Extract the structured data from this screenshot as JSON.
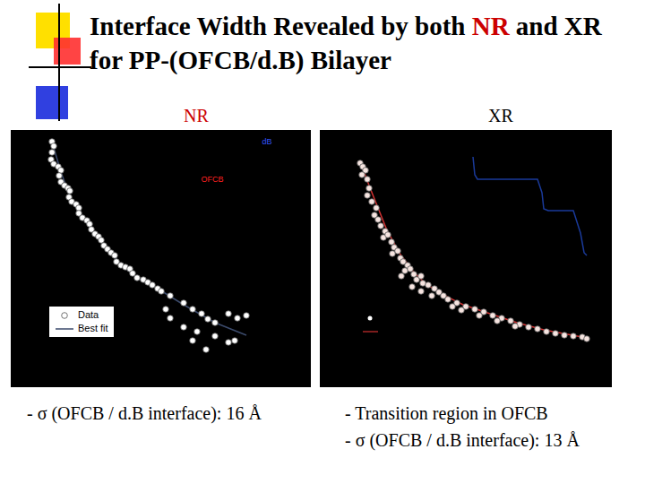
{
  "slide": {
    "title": [
      {
        "text": "Interface Width Revealed by both ",
        "color": "#000000"
      },
      {
        "text": "NR",
        "color": "#cc0000"
      },
      {
        "text": " and XR for PP-(OFCB/d.B) Bilayer",
        "color": "#000000"
      }
    ],
    "captions": [
      [
        "- σ (OFCB / d.B interface): 16 Å"
      ],
      [
        "- Transition region in OFCB",
        "- σ (OFCB / d.B interface): 13 Å"
      ]
    ]
  },
  "chart_data": [
    {
      "type": "scatter",
      "title": "NR",
      "xlim": [
        0,
        335
      ],
      "ylim": [
        0,
        287
      ],
      "tick_labels": false,
      "legend": "lower left",
      "series": [
        {
          "name": "Data",
          "type": "scatter",
          "color": "#ffffff",
          "marker": "circle",
          "x": [
            46,
            48,
            46,
            45,
            48,
            53,
            56,
            54,
            56,
            60,
            64,
            66,
            65,
            68,
            73,
            76,
            76,
            80,
            85,
            88,
            90,
            94,
            98,
            101,
            104,
            108,
            112,
            116,
            118,
            123,
            128,
            133,
            136,
            141,
            148,
            153,
            158,
            164,
            168,
            178,
            193,
            203,
            213,
            220,
            228,
            243,
            253,
            263,
            173,
            193,
            208,
            228,
            243,
            250,
            203,
            218,
            178
          ],
          "values": [
            274,
            269,
            262,
            254,
            249,
            246,
            242,
            236,
            229,
            225,
            222,
            219,
            212,
            207,
            204,
            200,
            194,
            189,
            186,
            182,
            176,
            171,
            168,
            164,
            158,
            154,
            150,
            147,
            140,
            136,
            134,
            132,
            127,
            122,
            120,
            117,
            114,
            110,
            107,
            102,
            94,
            87,
            82,
            76,
            72,
            82,
            77,
            80,
            87,
            67,
            62,
            57,
            50,
            52,
            52,
            42,
            77
          ]
        },
        {
          "name": "Best fit",
          "type": "line",
          "color": "#3b4a6b",
          "x": [
            46,
            56,
            68,
            80,
            94,
            108,
            123,
            141,
            164,
            193,
            228,
            263
          ],
          "values": [
            274,
            240,
            208,
            190,
            170,
            154,
            137,
            122,
            110,
            92,
            72,
            58
          ]
        }
      ],
      "annotations": [
        {
          "text": "dB",
          "x": 286,
          "y": 274,
          "color": "#3355ff"
        },
        {
          "text": "OFCB",
          "x": 225,
          "y": 232,
          "color": "#ff2020"
        }
      ]
    },
    {
      "type": "scatter",
      "title": "XR",
      "xlim": [
        0,
        326
      ],
      "ylim": [
        0,
        287
      ],
      "tick_labels": false,
      "series": [
        {
          "type": "scatter",
          "color": "#f6e4e0",
          "marker": "circle",
          "x": [
            45,
            48,
            51,
            47,
            53,
            55,
            53,
            58,
            63,
            61,
            65,
            68,
            73,
            71,
            76,
            80,
            83,
            81,
            87,
            90,
            93,
            98,
            95,
            101,
            105,
            108,
            113,
            115,
            121,
            128,
            133,
            125,
            138,
            143,
            153,
            163,
            173,
            183,
            193,
            203,
            213,
            223,
            233,
            243,
            253,
            263,
            273,
            283,
            293,
            298,
            103,
            113,
            91,
            148,
            158,
            178,
            198,
            218
          ],
          "values": [
            250,
            246,
            242,
            237,
            232,
            222,
            214,
            207,
            200,
            192,
            187,
            180,
            174,
            167,
            170,
            162,
            156,
            149,
            152,
            144,
            140,
            136,
            130,
            132,
            126,
            120,
            124,
            116,
            114,
            110,
            106,
            102,
            102,
            98,
            94,
            90,
            87,
            84,
            80,
            77,
            74,
            70,
            67,
            65,
            62,
            60,
            58,
            57,
            56,
            54,
            112,
            107,
            124,
            90,
            86,
            80,
            74,
            68
          ]
        },
        {
          "type": "line",
          "color": "#d03030",
          "x": [
            45,
            55,
            65,
            75,
            90,
            105,
            120,
            140,
            160,
            190,
            220,
            250,
            298
          ],
          "values": [
            252,
            225,
            200,
            175,
            148,
            128,
            114,
            102,
            92,
            82,
            72,
            64,
            55
          ]
        },
        {
          "type": "line",
          "color": "#1a3a9a",
          "x": [
            171,
            173,
            176,
            243,
            248,
            250,
            255,
            283,
            291,
            295,
            298
          ],
          "values": [
            257,
            237,
            232,
            232,
            217,
            199,
            197,
            197,
            172,
            150,
            147
          ]
        }
      ]
    }
  ]
}
